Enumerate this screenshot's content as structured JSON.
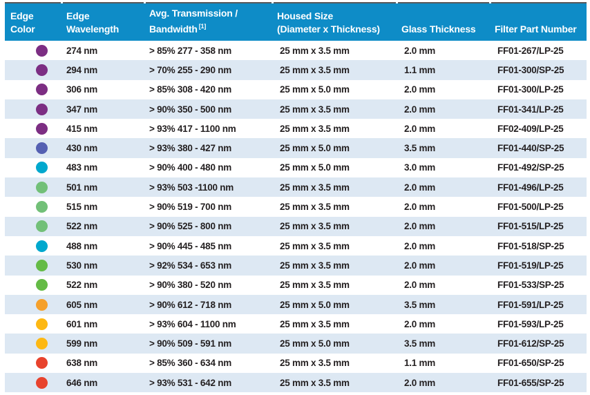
{
  "table": {
    "columns": [
      {
        "id": "edge_color",
        "label_lines": [
          "Edge",
          "Color"
        ]
      },
      {
        "id": "edge_wavelength",
        "label_lines": [
          "Edge",
          "Wavelength"
        ]
      },
      {
        "id": "transmission",
        "label_lines": [
          "Avg. Transmission /",
          "Bandwidth"
        ],
        "superscript": "[1]"
      },
      {
        "id": "housed_size",
        "label_lines": [
          "Housed Size",
          "(Diameter x Thickness)"
        ]
      },
      {
        "id": "glass_thickness",
        "label_lines": [
          "Glass Thickness"
        ]
      },
      {
        "id": "part_number",
        "label_lines": [
          "Filter Part Number"
        ]
      }
    ],
    "rows": [
      {
        "edge_color": "purple",
        "edge_wavelength": "274 nm",
        "transmission": "> 85% 277 - 358 nm",
        "housed_size": "25 mm x 3.5 mm",
        "glass_thickness": "2.0 mm",
        "part_number": "FF01-267/LP-25"
      },
      {
        "edge_color": "purple",
        "edge_wavelength": "294 nm",
        "transmission": "> 70% 255 - 290 nm",
        "housed_size": "25 mm x 3.5 mm",
        "glass_thickness": "1.1 mm",
        "part_number": "FF01-300/SP-25"
      },
      {
        "edge_color": "purple",
        "edge_wavelength": "306 nm",
        "transmission": "> 85% 308 - 420 nm",
        "housed_size": "25 mm x 5.0 mm",
        "glass_thickness": "2.0 mm",
        "part_number": "FF01-300/LP-25"
      },
      {
        "edge_color": "purple",
        "edge_wavelength": "347 nm",
        "transmission": "> 90% 350 - 500 nm",
        "housed_size": "25 mm x 3.5 mm",
        "glass_thickness": "2.0 mm",
        "part_number": "FF01-341/LP-25"
      },
      {
        "edge_color": "purple",
        "edge_wavelength": "415 nm",
        "transmission": "> 93% 417 - 1100 nm",
        "housed_size": "25 mm x 3.5 mm",
        "glass_thickness": "2.0 mm",
        "part_number": "FF02-409/LP-25"
      },
      {
        "edge_color": "indigo",
        "edge_wavelength": "430 nm",
        "transmission": "> 93% 380 - 427 nm",
        "housed_size": "25 mm x 5.0 mm",
        "glass_thickness": "3.5 mm",
        "part_number": "FF01-440/SP-25"
      },
      {
        "edge_color": "cyan",
        "edge_wavelength": "483 nm",
        "transmission": "> 90% 400 - 480 nm",
        "housed_size": "25 mm x 5.0 mm",
        "glass_thickness": "3.0 mm",
        "part_number": "FF01-492/SP-25"
      },
      {
        "edge_color": "green_soft",
        "edge_wavelength": "501 nm",
        "transmission": "> 93% 503 -1100 nm",
        "housed_size": "25 mm x 3.5 mm",
        "glass_thickness": "2.0 mm",
        "part_number": "FF01-496/LP-25"
      },
      {
        "edge_color": "green_soft",
        "edge_wavelength": "515 nm",
        "transmission": "> 90% 519 - 700 nm",
        "housed_size": "25 mm x 3.5 mm",
        "glass_thickness": "2.0 mm",
        "part_number": "FF01-500/LP-25"
      },
      {
        "edge_color": "green_soft",
        "edge_wavelength": "522 nm",
        "transmission": "> 90% 525 - 800 nm",
        "housed_size": "25 mm x 3.5 mm",
        "glass_thickness": "2.0 mm",
        "part_number": "FF01-515/LP-25"
      },
      {
        "edge_color": "cyan",
        "edge_wavelength": "488 nm",
        "transmission": "> 90% 445 - 485 nm",
        "housed_size": "25 mm x 3.5 mm",
        "glass_thickness": "2.0 mm",
        "part_number": "FF01-518/SP-25"
      },
      {
        "edge_color": "green_bright",
        "edge_wavelength": "530 nm",
        "transmission": "> 92% 534 - 653 nm",
        "housed_size": "25 mm x 3.5 mm",
        "glass_thickness": "2.0 mm",
        "part_number": "FF01-519/LP-25"
      },
      {
        "edge_color": "green_bright",
        "edge_wavelength": "522 nm",
        "transmission": "> 90% 380 - 520 nm",
        "housed_size": "25 mm x 3.5 mm",
        "glass_thickness": "2.0 mm",
        "part_number": "FF01-533/SP-25"
      },
      {
        "edge_color": "orange",
        "edge_wavelength": "605 nm",
        "transmission": "> 90% 612 - 718 nm",
        "housed_size": "25 mm x 5.0 mm",
        "glass_thickness": "3.5 mm",
        "part_number": "FF01-591/LP-25"
      },
      {
        "edge_color": "amber",
        "edge_wavelength": "601 nm",
        "transmission": "> 93% 604 - 1100 nm",
        "housed_size": "25 mm x 3.5 mm",
        "glass_thickness": "2.0 mm",
        "part_number": "FF01-593/LP-25"
      },
      {
        "edge_color": "amber",
        "edge_wavelength": "599 nm",
        "transmission": "> 90% 509 - 591 nm",
        "housed_size": "25 mm x 5.0 mm",
        "glass_thickness": "3.5 mm",
        "part_number": "FF01-612/SP-25"
      },
      {
        "edge_color": "red",
        "edge_wavelength": "638 nm",
        "transmission": "> 85% 360 - 634 nm",
        "housed_size": "25 mm x 3.5 mm",
        "glass_thickness": "1.1 mm",
        "part_number": "FF01-650/SP-25"
      },
      {
        "edge_color": "red",
        "edge_wavelength": "646 nm",
        "transmission": "> 93% 531 - 642 nm",
        "housed_size": "25 mm x 3.5 mm",
        "glass_thickness": "2.0 mm",
        "part_number": "FF01-655/SP-25"
      }
    ]
  },
  "colors": {
    "header_bg": "#0e8cc7",
    "row_alt_bg": "#dde8f3",
    "top_rule": "#58595b",
    "text": "#231f20",
    "dots": {
      "purple": "#7c2e83",
      "indigo": "#5560b2",
      "cyan": "#00a8ce",
      "green_soft": "#72c078",
      "green_bright": "#64bb46",
      "orange": "#f5a02b",
      "amber": "#fdb813",
      "red": "#e8432d"
    }
  }
}
